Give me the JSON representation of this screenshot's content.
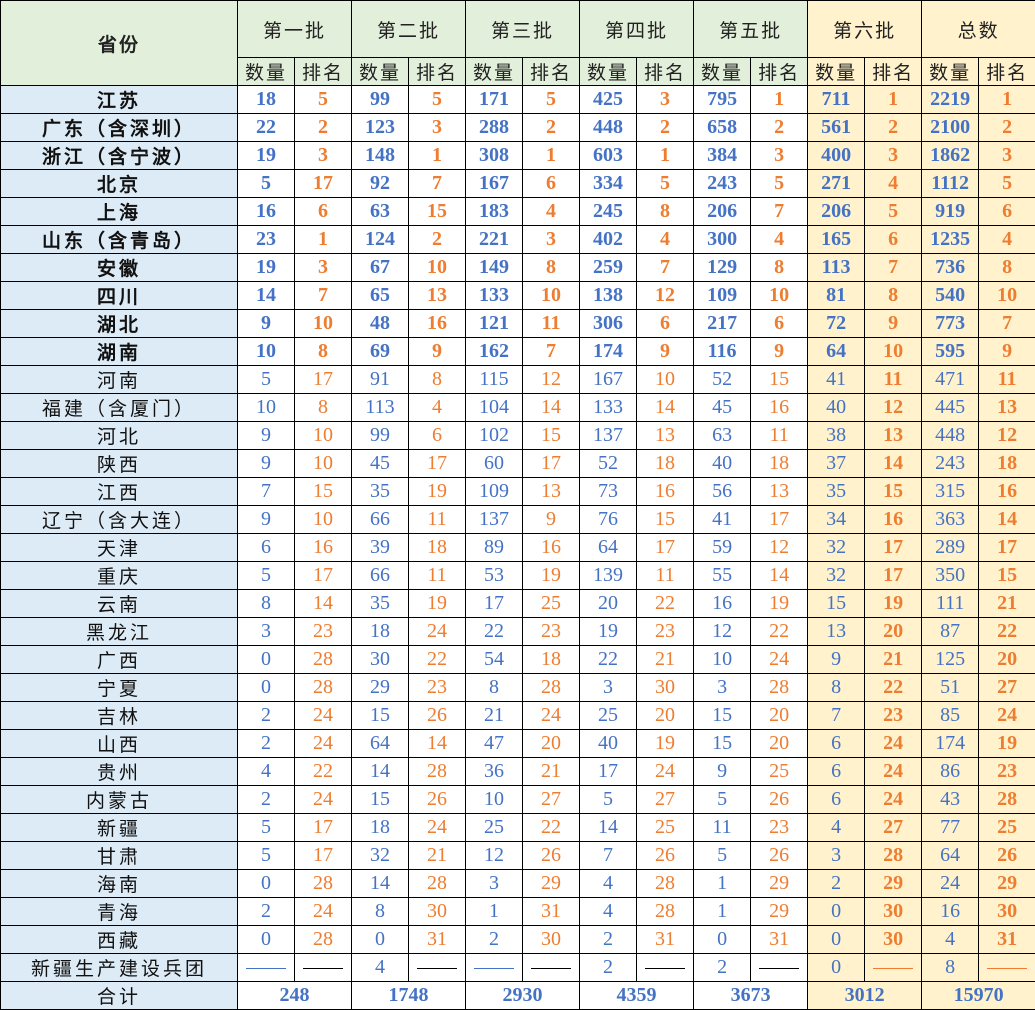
{
  "header": {
    "province": "省份",
    "batches": [
      "第一批",
      "第二批",
      "第三批",
      "第四批",
      "第五批",
      "第六批",
      "总数"
    ],
    "count_label": "数量",
    "rank_label": "排名"
  },
  "colors": {
    "count": "#4472c4",
    "rank": "#ed7d31",
    "header_green": "#e2efda",
    "highlight_orange": "#fff2cc",
    "province_blue": "#ddebf7"
  },
  "rows": [
    [
      "江苏",
      "18",
      "5",
      "99",
      "5",
      "171",
      "5",
      "425",
      "3",
      "795",
      "1",
      "711",
      "1",
      "2219",
      "1"
    ],
    [
      "广东（含深圳）",
      "22",
      "2",
      "123",
      "3",
      "288",
      "2",
      "448",
      "2",
      "658",
      "2",
      "561",
      "2",
      "2100",
      "2"
    ],
    [
      "浙江（含宁波）",
      "19",
      "3",
      "148",
      "1",
      "308",
      "1",
      "603",
      "1",
      "384",
      "3",
      "400",
      "3",
      "1862",
      "3"
    ],
    [
      "北京",
      "5",
      "17",
      "92",
      "7",
      "167",
      "6",
      "334",
      "5",
      "243",
      "5",
      "271",
      "4",
      "1112",
      "5"
    ],
    [
      "上海",
      "16",
      "6",
      "63",
      "15",
      "183",
      "4",
      "245",
      "8",
      "206",
      "7",
      "206",
      "5",
      "919",
      "6"
    ],
    [
      "山东（含青岛）",
      "23",
      "1",
      "124",
      "2",
      "221",
      "3",
      "402",
      "4",
      "300",
      "4",
      "165",
      "6",
      "1235",
      "4"
    ],
    [
      "安徽",
      "19",
      "3",
      "67",
      "10",
      "149",
      "8",
      "259",
      "7",
      "129",
      "8",
      "113",
      "7",
      "736",
      "8"
    ],
    [
      "四川",
      "14",
      "7",
      "65",
      "13",
      "133",
      "10",
      "138",
      "12",
      "109",
      "10",
      "81",
      "8",
      "540",
      "10"
    ],
    [
      "湖北",
      "9",
      "10",
      "48",
      "16",
      "121",
      "11",
      "306",
      "6",
      "217",
      "6",
      "72",
      "9",
      "773",
      "7"
    ],
    [
      "湖南",
      "10",
      "8",
      "69",
      "9",
      "162",
      "7",
      "174",
      "9",
      "116",
      "9",
      "64",
      "10",
      "595",
      "9"
    ],
    [
      "河南",
      "5",
      "17",
      "91",
      "8",
      "115",
      "12",
      "167",
      "10",
      "52",
      "15",
      "41",
      "11",
      "471",
      "11"
    ],
    [
      "福建（含厦门）",
      "10",
      "8",
      "113",
      "4",
      "104",
      "14",
      "133",
      "14",
      "45",
      "16",
      "40",
      "12",
      "445",
      "13"
    ],
    [
      "河北",
      "9",
      "10",
      "99",
      "6",
      "102",
      "15",
      "137",
      "13",
      "63",
      "11",
      "38",
      "13",
      "448",
      "12"
    ],
    [
      "陕西",
      "9",
      "10",
      "45",
      "17",
      "60",
      "17",
      "52",
      "18",
      "40",
      "18",
      "37",
      "14",
      "243",
      "18"
    ],
    [
      "江西",
      "7",
      "15",
      "35",
      "19",
      "109",
      "13",
      "73",
      "16",
      "56",
      "13",
      "35",
      "15",
      "315",
      "16"
    ],
    [
      "辽宁（含大连）",
      "9",
      "10",
      "66",
      "11",
      "137",
      "9",
      "76",
      "15",
      "41",
      "17",
      "34",
      "16",
      "363",
      "14"
    ],
    [
      "天津",
      "6",
      "16",
      "39",
      "18",
      "89",
      "16",
      "64",
      "17",
      "59",
      "12",
      "32",
      "17",
      "289",
      "17"
    ],
    [
      "重庆",
      "5",
      "17",
      "66",
      "11",
      "53",
      "19",
      "139",
      "11",
      "55",
      "14",
      "32",
      "17",
      "350",
      "15"
    ],
    [
      "云南",
      "8",
      "14",
      "35",
      "19",
      "17",
      "25",
      "20",
      "22",
      "16",
      "19",
      "15",
      "19",
      "111",
      "21"
    ],
    [
      "黑龙江",
      "3",
      "23",
      "18",
      "24",
      "22",
      "23",
      "19",
      "23",
      "12",
      "22",
      "13",
      "20",
      "87",
      "22"
    ],
    [
      "广西",
      "0",
      "28",
      "30",
      "22",
      "54",
      "18",
      "22",
      "21",
      "10",
      "24",
      "9",
      "21",
      "125",
      "20"
    ],
    [
      "宁夏",
      "0",
      "28",
      "29",
      "23",
      "8",
      "28",
      "3",
      "30",
      "3",
      "28",
      "8",
      "22",
      "51",
      "27"
    ],
    [
      "吉林",
      "2",
      "24",
      "15",
      "26",
      "21",
      "24",
      "25",
      "20",
      "15",
      "20",
      "7",
      "23",
      "85",
      "24"
    ],
    [
      "山西",
      "2",
      "24",
      "64",
      "14",
      "47",
      "20",
      "40",
      "19",
      "15",
      "20",
      "6",
      "24",
      "174",
      "19"
    ],
    [
      "贵州",
      "4",
      "22",
      "14",
      "28",
      "36",
      "21",
      "17",
      "24",
      "9",
      "25",
      "6",
      "24",
      "86",
      "23"
    ],
    [
      "内蒙古",
      "2",
      "24",
      "15",
      "26",
      "10",
      "27",
      "5",
      "27",
      "5",
      "26",
      "6",
      "24",
      "43",
      "28"
    ],
    [
      "新疆",
      "5",
      "17",
      "18",
      "24",
      "25",
      "22",
      "14",
      "25",
      "11",
      "23",
      "4",
      "27",
      "77",
      "25"
    ],
    [
      "甘肃",
      "5",
      "17",
      "32",
      "21",
      "12",
      "26",
      "7",
      "26",
      "5",
      "26",
      "3",
      "28",
      "64",
      "26"
    ],
    [
      "海南",
      "0",
      "28",
      "14",
      "28",
      "3",
      "29",
      "4",
      "28",
      "1",
      "29",
      "2",
      "29",
      "24",
      "29"
    ],
    [
      "青海",
      "2",
      "24",
      "8",
      "30",
      "1",
      "31",
      "4",
      "28",
      "1",
      "29",
      "0",
      "30",
      "16",
      "30"
    ],
    [
      "西藏",
      "0",
      "28",
      "0",
      "31",
      "2",
      "30",
      "2",
      "31",
      "0",
      "31",
      "0",
      "30",
      "4",
      "31"
    ],
    [
      "新疆生产建设兵团",
      "—",
      "—",
      "4",
      "—",
      "—",
      "—",
      "2",
      "—",
      "2",
      "—",
      "0",
      "—",
      "8",
      "—"
    ]
  ],
  "total": {
    "label": "合计",
    "values": [
      "248",
      "1748",
      "2930",
      "4359",
      "3673",
      "3012",
      "15970"
    ]
  }
}
